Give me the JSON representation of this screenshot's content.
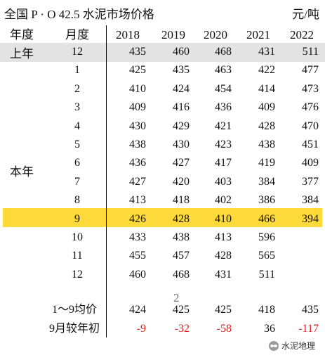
{
  "title": "全国 P · O 42.5 水泥市场价格",
  "unit": "元/吨",
  "headers": {
    "period": "年度",
    "month": "月度",
    "years": [
      "2018",
      "2019",
      "2020",
      "2021",
      "2022"
    ]
  },
  "period_labels": {
    "last_year": "上年",
    "this_year": "本年"
  },
  "rows": [
    {
      "month": "12",
      "values": [
        "435",
        "460",
        "468",
        "431",
        "511"
      ]
    },
    {
      "month": "1",
      "values": [
        "425",
        "435",
        "463",
        "422",
        "477"
      ]
    },
    {
      "month": "2",
      "values": [
        "410",
        "424",
        "454",
        "414",
        "473"
      ]
    },
    {
      "month": "3",
      "values": [
        "409",
        "416",
        "436",
        "409",
        "476"
      ]
    },
    {
      "month": "4",
      "values": [
        "430",
        "429",
        "421",
        "428",
        "470"
      ]
    },
    {
      "month": "5",
      "values": [
        "438",
        "430",
        "423",
        "438",
        "451"
      ]
    },
    {
      "month": "6",
      "values": [
        "436",
        "427",
        "417",
        "419",
        "409"
      ]
    },
    {
      "month": "7",
      "values": [
        "427",
        "420",
        "403",
        "384",
        "377"
      ]
    },
    {
      "month": "8",
      "values": [
        "413",
        "418",
        "402",
        "386",
        "384"
      ]
    },
    {
      "month": "9",
      "values": [
        "426",
        "428",
        "410",
        "466",
        "394"
      ]
    },
    {
      "month": "10",
      "values": [
        "433",
        "438",
        "413",
        "596",
        ""
      ]
    },
    {
      "month": "11",
      "values": [
        "455",
        "457",
        "428",
        "565",
        ""
      ]
    },
    {
      "month": "12",
      "values": [
        "460",
        "468",
        "431",
        "511",
        ""
      ]
    }
  ],
  "marker": "2",
  "summary": [
    {
      "label": "1～9均价",
      "values": [
        "424",
        "425",
        "425",
        "418",
        "435"
      ],
      "red": [
        false,
        false,
        false,
        false,
        false
      ]
    },
    {
      "label": "9月较年初",
      "values": [
        "-9",
        "-32",
        "-58",
        "36",
        "-117"
      ],
      "red": [
        true,
        true,
        true,
        false,
        true
      ]
    }
  ],
  "watermark": "水泥地理",
  "colors": {
    "highlight_gray": "#e3e3e3",
    "highlight_yellow": "#fdd93a",
    "negative": "#e02020"
  }
}
